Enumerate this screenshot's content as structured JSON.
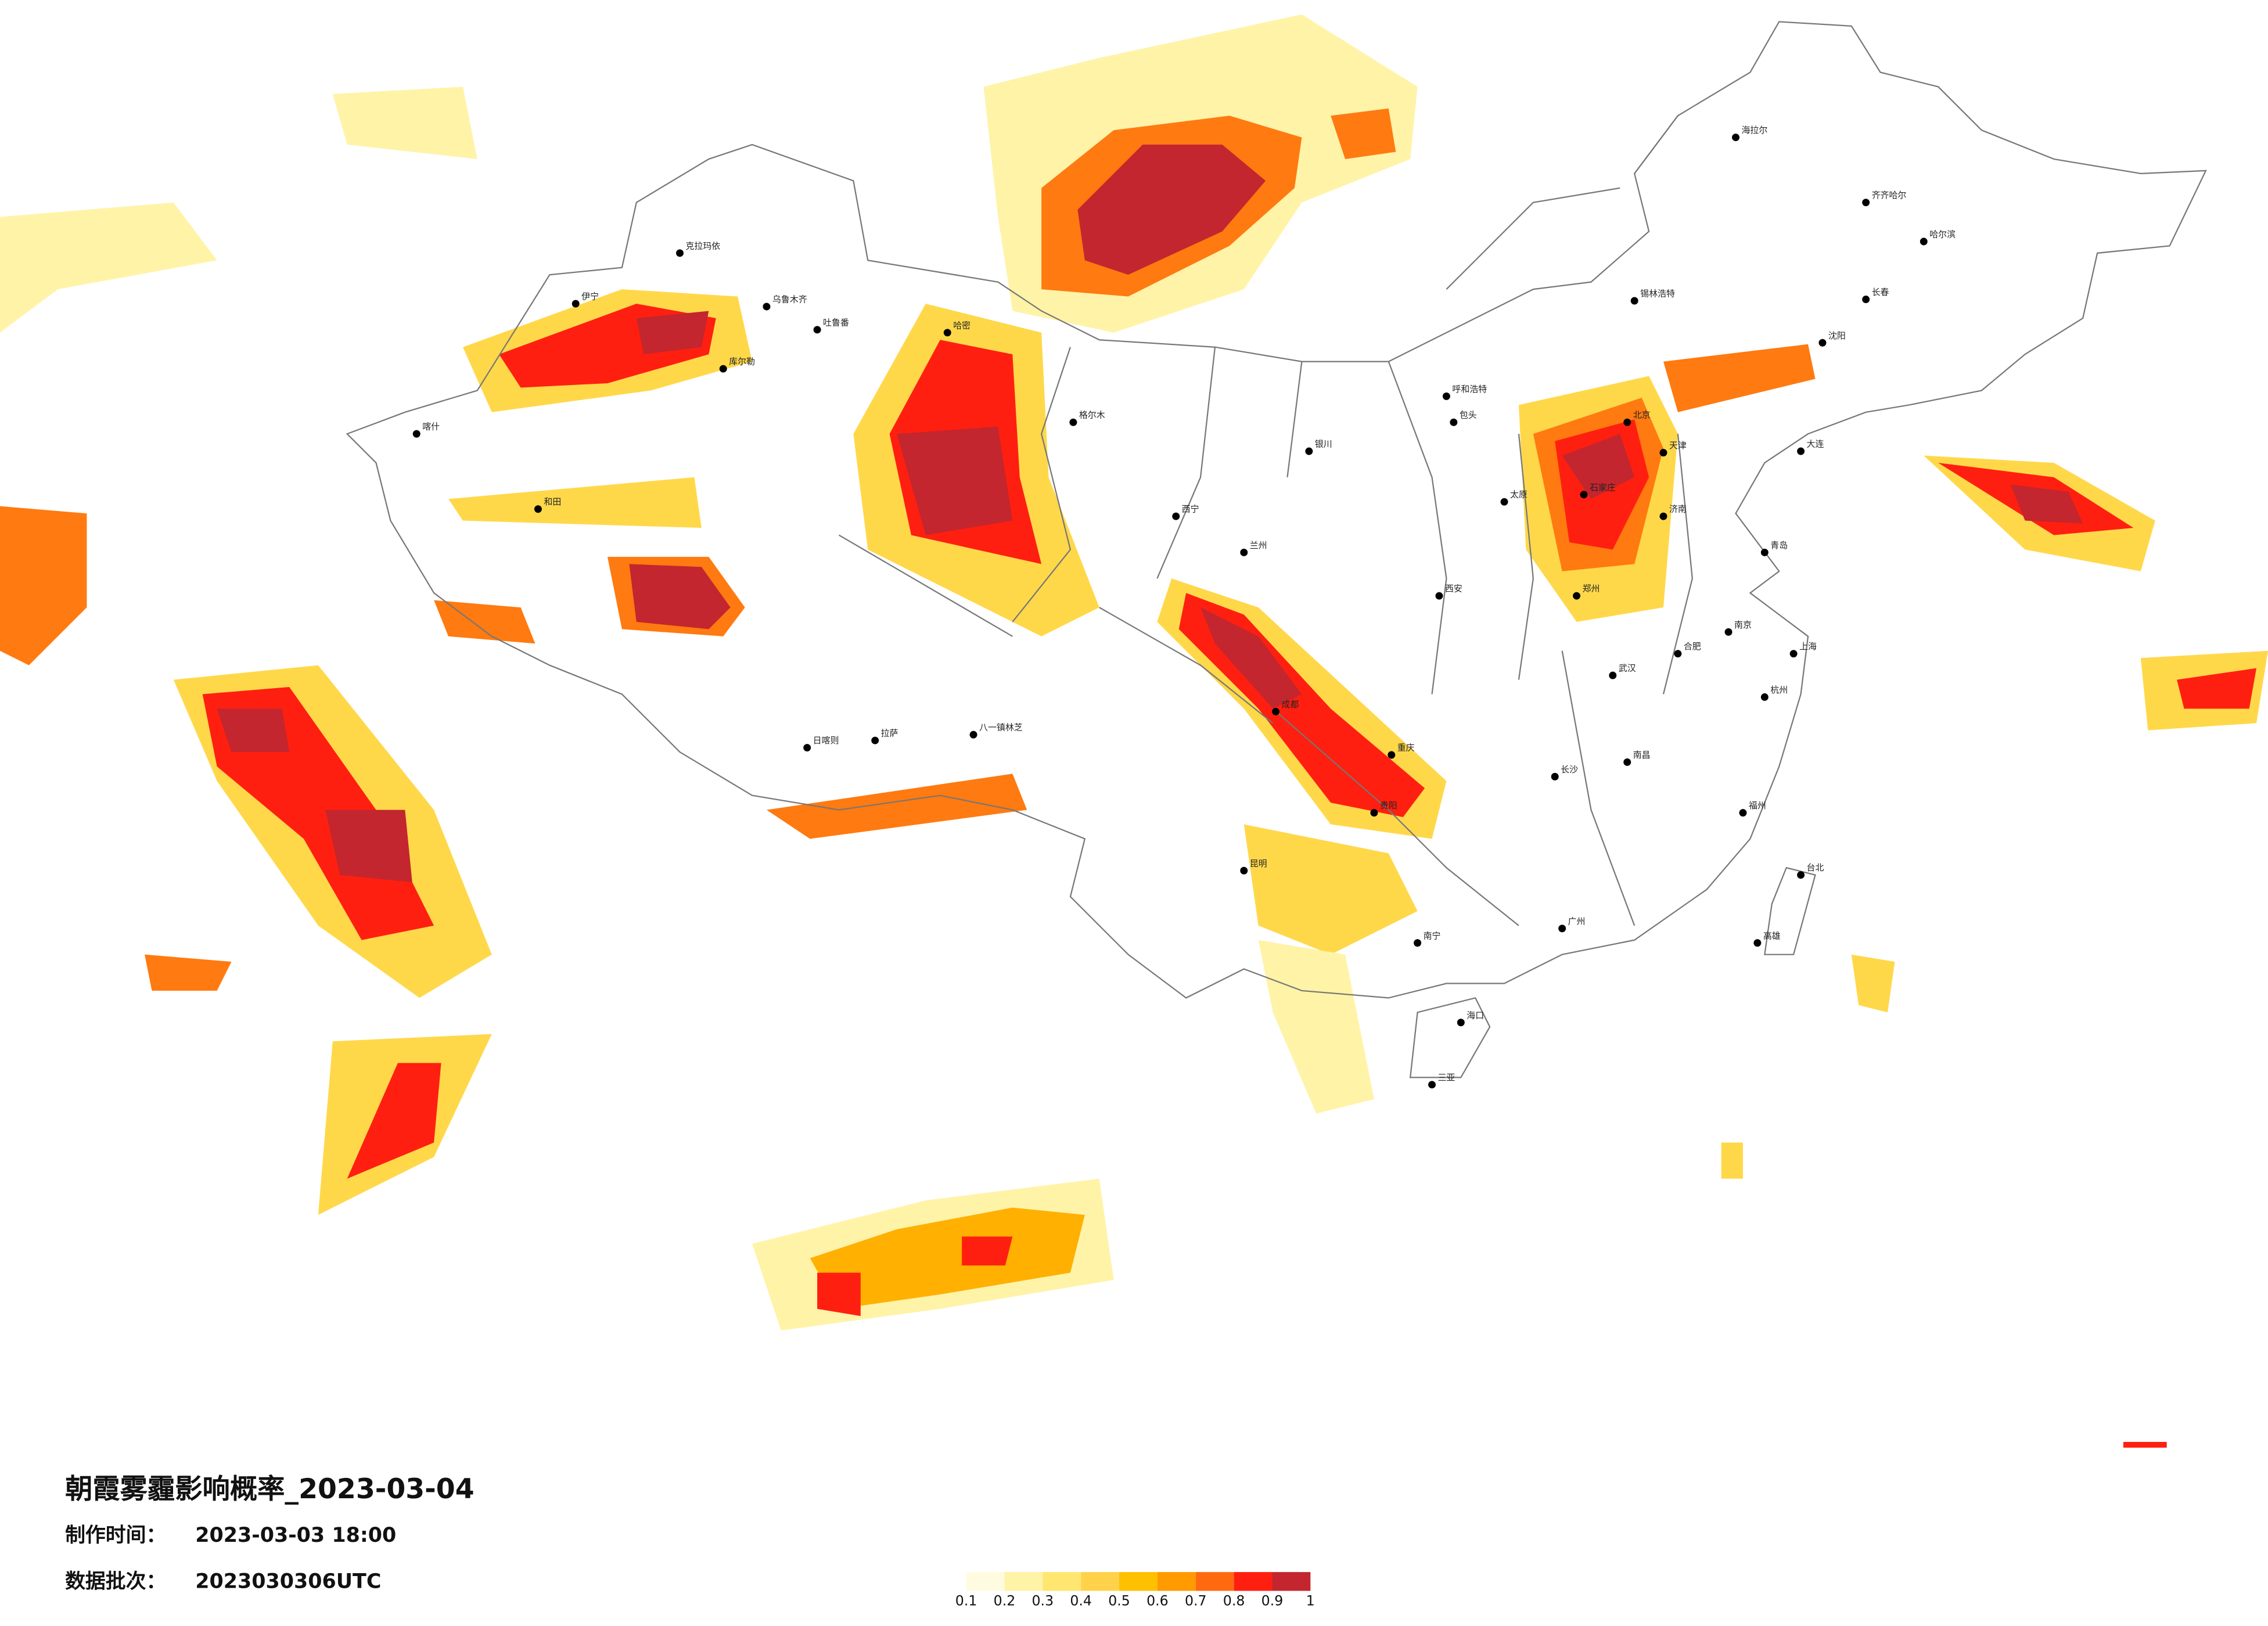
{
  "title": "朝霞雾霾影响概率_2023-03-04",
  "made_time": {
    "label": "制作时间：",
    "value": "2023-03-03 18:00"
  },
  "batch": {
    "label": "数据批次：",
    "value": "2023030306UTC"
  },
  "legend": {
    "ticks": [
      0.1,
      0.2,
      0.3,
      0.4,
      0.5,
      0.6,
      0.7,
      0.8,
      0.9,
      1
    ],
    "colors": [
      "#fffbe0",
      "#fff3a8",
      "#ffe670",
      "#ffd24a",
      "#ffc000",
      "#ff9a00",
      "#ff6a10",
      "#ff1f10",
      "#c3262e"
    ]
  },
  "cities": [
    "乌鲁木齐",
    "克拉玛依",
    "伊宁",
    "库尔勒",
    "和田",
    "喀什",
    "哈密",
    "吐鲁番",
    "拉萨",
    "日喀则",
    "八一镇林芝",
    "西宁",
    "格尔木",
    "兰州",
    "银川",
    "呼和浩特",
    "北京",
    "天津",
    "石家庄",
    "太原",
    "郑州",
    "西安",
    "成都",
    "重庆",
    "武汉",
    "长沙",
    "南昌",
    "合肥",
    "南京",
    "上海",
    "杭州",
    "福州",
    "广州",
    "南宁",
    "海口",
    "三亚",
    "昆明",
    "贵阳",
    "济南",
    "沈阳",
    "长春",
    "哈尔滨",
    "大连",
    "青岛",
    "台北",
    "高雄",
    "海拉尔",
    "齐齐哈尔",
    "锡林浩特",
    "包头"
  ]
}
